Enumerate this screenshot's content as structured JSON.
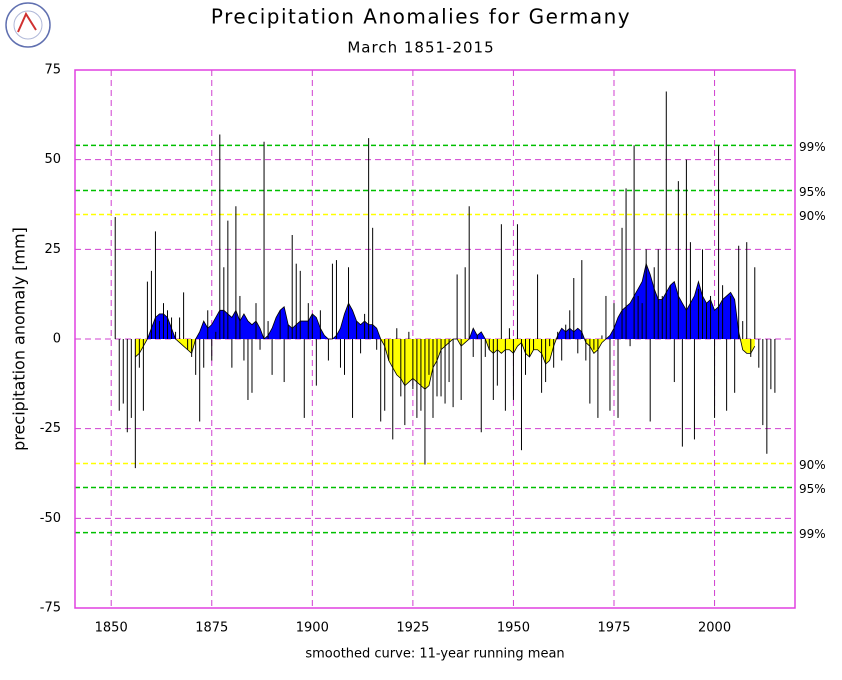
{
  "chart_data": {
    "type": "bar",
    "title": "Precipitation Anomalies for Germany",
    "subtitle": "March 1851-2015",
    "y_label": "precipitation anomaly [mm]",
    "x": [
      1851,
      1852,
      1853,
      1854,
      1855,
      1856,
      1857,
      1858,
      1859,
      1860,
      1861,
      1862,
      1863,
      1864,
      1865,
      1866,
      1867,
      1868,
      1869,
      1870,
      1871,
      1872,
      1873,
      1874,
      1875,
      1876,
      1877,
      1878,
      1879,
      1880,
      1881,
      1882,
      1883,
      1884,
      1885,
      1886,
      1887,
      1888,
      1889,
      1890,
      1891,
      1892,
      1893,
      1894,
      1895,
      1896,
      1897,
      1898,
      1899,
      1900,
      1901,
      1902,
      1903,
      1904,
      1905,
      1906,
      1907,
      1908,
      1909,
      1910,
      1911,
      1912,
      1913,
      1914,
      1915,
      1916,
      1917,
      1918,
      1919,
      1920,
      1921,
      1922,
      1923,
      1924,
      1925,
      1926,
      1927,
      1928,
      1929,
      1930,
      1931,
      1932,
      1933,
      1934,
      1935,
      1936,
      1937,
      1938,
      1939,
      1940,
      1941,
      1942,
      1943,
      1944,
      1945,
      1946,
      1947,
      1948,
      1949,
      1950,
      1951,
      1952,
      1953,
      1954,
      1955,
      1956,
      1957,
      1958,
      1959,
      1960,
      1961,
      1962,
      1963,
      1964,
      1965,
      1966,
      1967,
      1968,
      1969,
      1970,
      1971,
      1972,
      1973,
      1974,
      1975,
      1976,
      1977,
      1978,
      1979,
      1980,
      1981,
      1982,
      1983,
      1984,
      1985,
      1986,
      1987,
      1988,
      1989,
      1990,
      1991,
      1992,
      1993,
      1994,
      1995,
      1996,
      1997,
      1998,
      1999,
      2000,
      2001,
      2002,
      2003,
      2004,
      2005,
      2006,
      2007,
      2008,
      2009,
      2010,
      2011,
      2012,
      2013,
      2014,
      2015
    ],
    "values": [
      34,
      -20,
      -18,
      -26,
      -22,
      -36,
      -8,
      -20,
      16,
      19,
      30,
      5,
      10,
      8,
      6,
      2,
      6,
      13,
      -3,
      -5,
      -10,
      -23,
      -8,
      8,
      -6,
      2,
      57,
      20,
      33,
      -8,
      37,
      12,
      -6,
      -17,
      -15,
      10,
      -3,
      55,
      5,
      -10,
      0,
      8,
      -12,
      4,
      29,
      21,
      19,
      -22,
      10,
      7,
      -13,
      8,
      0,
      -6,
      21,
      22,
      -8,
      -10,
      20,
      -22,
      5,
      -4,
      7,
      56,
      31,
      -3,
      -23,
      -20,
      -6,
      -28,
      3,
      -16,
      -24,
      2,
      -14,
      -22,
      -20,
      -35,
      -10,
      -22,
      -16,
      -16,
      -18,
      -12,
      -19,
      18,
      -17,
      20,
      37,
      -5,
      1,
      -26,
      -5,
      -3,
      -17,
      -13,
      32,
      -20,
      3,
      -17,
      32,
      -31,
      -10,
      -5,
      -3,
      18,
      -15,
      -12,
      -2,
      -8,
      2,
      -6,
      4,
      8,
      17,
      -4,
      22,
      -6,
      -18,
      -3,
      -22,
      1,
      12,
      -20,
      10,
      -22,
      31,
      42,
      -2,
      54,
      12,
      10,
      25,
      -23,
      20,
      25,
      12,
      69,
      15,
      -12,
      44,
      -30,
      50,
      27,
      -28,
      14,
      25,
      10,
      12,
      -22,
      54,
      15,
      -20,
      12,
      -15,
      26,
      5,
      27,
      -5,
      20,
      -8,
      -24,
      -32,
      -14,
      -15
    ],
    "color": "#000000",
    "smoothed": {
      "label": "smoothed curve: 11-year running mean",
      "positive_color": "#0000ff",
      "negative_color": "#ffff00",
      "values": [
        null,
        null,
        null,
        null,
        null,
        -5,
        -4,
        -2,
        0,
        3,
        6,
        7,
        7,
        6,
        3,
        0,
        -1,
        -2,
        -3,
        -4,
        0,
        2,
        5,
        3,
        4,
        6,
        8,
        8,
        7,
        6,
        8,
        5,
        7,
        5,
        4,
        5,
        3,
        0,
        1,
        3,
        6,
        8,
        9,
        4,
        3,
        4,
        5,
        5,
        5,
        7,
        6,
        3,
        1,
        0,
        0,
        1,
        3,
        7,
        10,
        8,
        5,
        4,
        5,
        4,
        4,
        3,
        0,
        -2,
        -6,
        -8,
        -10,
        -11,
        -13,
        -12,
        -11,
        -12,
        -13,
        -14,
        -13,
        -8,
        -6,
        -3,
        -2,
        -1,
        0,
        0,
        -2,
        -1,
        0,
        3,
        1,
        2,
        0,
        -3,
        -4,
        -3,
        -4,
        -3,
        -3,
        -4,
        -2,
        -1,
        -4,
        -5,
        -3,
        -3,
        -4,
        -7,
        -6,
        -2,
        1,
        3,
        2,
        3,
        2,
        3,
        2,
        -1,
        -2,
        -4,
        -3,
        -1,
        0,
        1,
        3,
        6,
        8,
        9,
        10,
        12,
        14,
        16,
        21,
        18,
        14,
        11,
        11,
        13,
        15,
        16,
        12,
        10,
        8,
        10,
        12,
        16,
        12,
        10,
        11,
        8,
        9,
        11,
        12,
        13,
        11,
        2,
        -3,
        -4,
        -4,
        -2,
        null,
        null,
        null,
        null,
        null
      ]
    },
    "thresholds": [
      {
        "value": 54,
        "label": "99%",
        "color": "#00c000"
      },
      {
        "value": 41.4,
        "label": "95%",
        "color": "#00c000"
      },
      {
        "value": 34.7,
        "label": "90%",
        "color": "#ffff00"
      },
      {
        "value": -34.7,
        "label": "90%",
        "color": "#ffff00"
      },
      {
        "value": -41.4,
        "label": "95%",
        "color": "#00c000"
      },
      {
        "value": -54,
        "label": "99%",
        "color": "#00c000"
      }
    ],
    "xlim": [
      1841,
      2020
    ],
    "ylim": [
      -75,
      75
    ],
    "xticks": [
      1850,
      1875,
      1900,
      1925,
      1950,
      1975,
      2000
    ],
    "yticks": [
      -75,
      -50,
      -25,
      0,
      25,
      50,
      75
    ],
    "grid": true,
    "grid_color": "#d040d0",
    "frame_color": "#e040e0"
  }
}
